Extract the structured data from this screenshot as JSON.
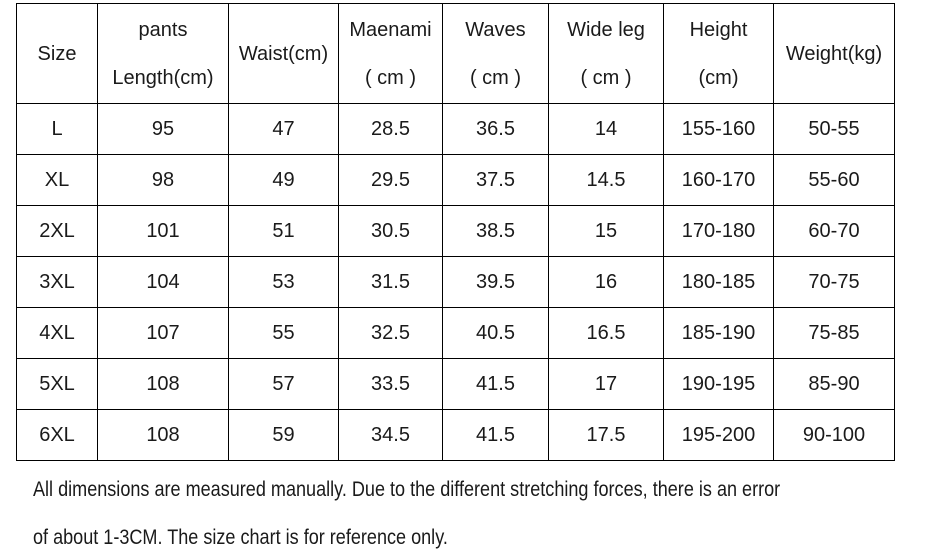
{
  "table": {
    "columns": [
      {
        "id": "size",
        "lines": [
          "Size"
        ]
      },
      {
        "id": "pants-length",
        "lines": [
          "pants",
          "Length(cm)"
        ]
      },
      {
        "id": "waist",
        "lines": [
          "Waist(cm)"
        ]
      },
      {
        "id": "maenami",
        "lines": [
          "Maenami",
          "（cm）"
        ]
      },
      {
        "id": "waves",
        "lines": [
          "Waves",
          "（cm）"
        ]
      },
      {
        "id": "wide-leg",
        "lines": [
          "Wide leg",
          "（cm）"
        ]
      },
      {
        "id": "height",
        "lines": [
          "Height",
          "(cm)"
        ]
      },
      {
        "id": "weight",
        "lines": [
          "Weight(kg)"
        ]
      }
    ],
    "rows": [
      [
        "L",
        "95",
        "47",
        "28.5",
        "36.5",
        "14",
        "155-160",
        "50-55"
      ],
      [
        "XL",
        "98",
        "49",
        "29.5",
        "37.5",
        "14.5",
        "160-170",
        "55-60"
      ],
      [
        "2XL",
        "101",
        "51",
        "30.5",
        "38.5",
        "15",
        "170-180",
        "60-70"
      ],
      [
        "3XL",
        "104",
        "53",
        "31.5",
        "39.5",
        "16",
        "180-185",
        "70-75"
      ],
      [
        "4XL",
        "107",
        "55",
        "32.5",
        "40.5",
        "16.5",
        "185-190",
        "75-85"
      ],
      [
        "5XL",
        "108",
        "57",
        "33.5",
        "41.5",
        "17",
        "190-195",
        "85-90"
      ],
      [
        "6XL",
        "108",
        "59",
        "34.5",
        "41.5",
        "17.5",
        "195-200",
        "90-100"
      ]
    ]
  },
  "note": {
    "lines": [
      "All dimensions are measured manually. Due to the different stretching forces, there is an error",
      "of about 1-3CM. The size chart is for reference only."
    ]
  },
  "colors": {
    "background": "#ffffff",
    "border": "#000000",
    "text": "#1a1a1a"
  }
}
